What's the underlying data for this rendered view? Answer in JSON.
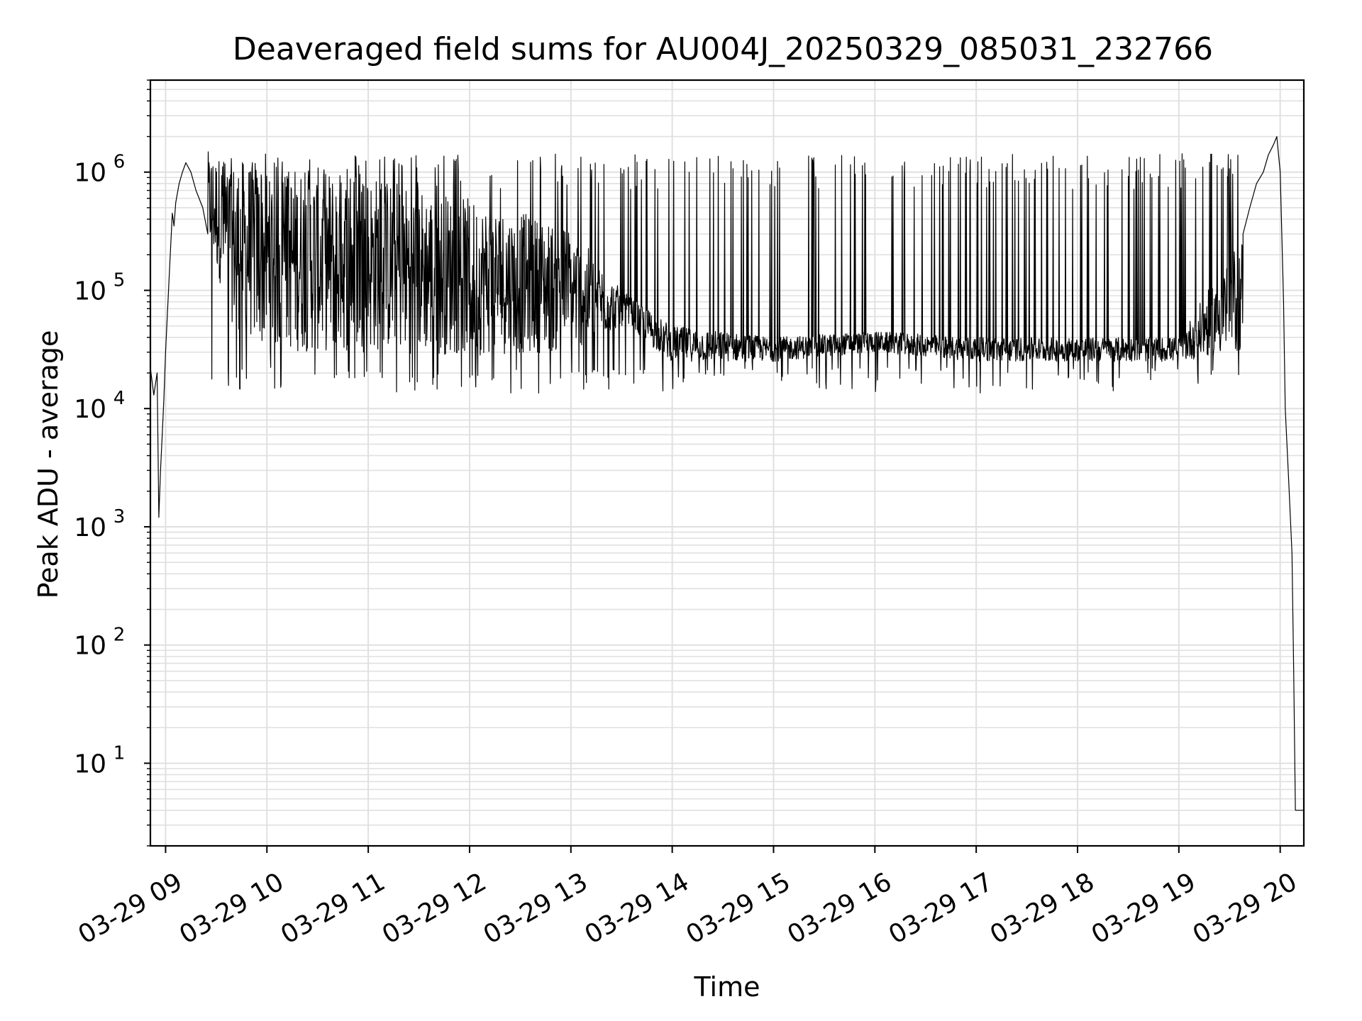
{
  "chart_data": {
    "type": "line",
    "title": "Deaveraged field sums for AU004J_20250329_085031_232766",
    "xlabel": "Time",
    "ylabel": "Peak ADU - average",
    "yscale": "log",
    "ylim": [
      2,
      6000000
    ],
    "xlim": [
      "2025-03-29T08:51:00",
      "2025-03-29T20:14:00"
    ],
    "grid": true,
    "line_color": "#000000",
    "x_ticks": [
      "03-29 09",
      "03-29 10",
      "03-29 11",
      "03-29 12",
      "03-29 13",
      "03-29 14",
      "03-29 15",
      "03-29 16",
      "03-29 17",
      "03-29 18",
      "03-29 19",
      "03-29 20"
    ],
    "y_ticks": [
      {
        "base": "10",
        "exp": "1"
      },
      {
        "base": "10",
        "exp": "2"
      },
      {
        "base": "10",
        "exp": "3"
      },
      {
        "base": "10",
        "exp": "4"
      },
      {
        "base": "10",
        "exp": "5"
      },
      {
        "base": "10",
        "exp": "6"
      }
    ],
    "series": [
      {
        "x": [
          "2025-03-29T08:51:00",
          "2025-03-29T08:53:00",
          "2025-03-29T08:55:00",
          "2025-03-29T08:56:00",
          "2025-03-29T08:57:00",
          "2025-03-29T08:58:00",
          "2025-03-29T08:59:00",
          "2025-03-29T09:00:00",
          "2025-03-29T09:02:00",
          "2025-03-29T09:04:00",
          "2025-03-29T09:05:00",
          "2025-03-29T09:06:00",
          "2025-03-29T09:08:00",
          "2025-03-29T09:10:00",
          "2025-03-29T09:12:00",
          "2025-03-29T09:15:00",
          "2025-03-29T09:18:00",
          "2025-03-29T09:22:00",
          "2025-03-29T09:25:00",
          "2025-03-29T19:38:00",
          "2025-03-29T19:42:00",
          "2025-03-29T19:46:00",
          "2025-03-29T19:50:00",
          "2025-03-29T19:53:00",
          "2025-03-29T19:56:00",
          "2025-03-29T19:58:00",
          "2025-03-29T20:00:00",
          "2025-03-29T20:02:00",
          "2025-03-29T20:03:00",
          "2025-03-29T20:05:00",
          "2025-03-29T20:07:00",
          "2025-03-29T20:08:00",
          "2025-03-29T20:09:00",
          "2025-03-29T20:10:00",
          "2025-03-29T20:14:00"
        ],
        "y": [
          22000,
          13000,
          20000,
          1200,
          3000,
          6000,
          12000,
          30000,
          120000,
          450000,
          350000,
          550000,
          800000,
          1000000,
          1200000,
          1000000,
          700000,
          500000,
          300000,
          300000,
          500000,
          800000,
          1000000,
          1400000,
          1700000,
          2000000,
          1000000,
          80000,
          10000,
          2500,
          600,
          60,
          4,
          4,
          4
        ]
      }
    ],
    "noisy_band": {
      "x_range": [
        "2025-03-29T09:25:00",
        "2025-03-29T19:38:00"
      ],
      "baseline": [
        {
          "x": "2025-03-29T09:25:00",
          "low": 250000,
          "high": 1500000
        },
        {
          "x": "2025-03-29T09:40:00",
          "low": 50000,
          "high": 1300000
        },
        {
          "x": "2025-03-29T10:00:00",
          "low": 30000,
          "high": 1200000
        },
        {
          "x": "2025-03-29T11:00:00",
          "low": 30000,
          "high": 1000000
        },
        {
          "x": "2025-03-29T12:00:00",
          "low": 28000,
          "high": 600000
        },
        {
          "x": "2025-03-29T13:00:00",
          "low": 30000,
          "high": 350000
        },
        {
          "x": "2025-03-29T13:30:00",
          "low": 50000,
          "high": 100000
        },
        {
          "x": "2025-03-29T14:00:00",
          "low": 25000,
          "high": 50000
        },
        {
          "x": "2025-03-29T15:00:00",
          "low": 25000,
          "high": 40000
        },
        {
          "x": "2025-03-29T16:00:00",
          "low": 30000,
          "high": 45000
        },
        {
          "x": "2025-03-29T17:00:00",
          "low": 25000,
          "high": 40000
        },
        {
          "x": "2025-03-29T18:00:00",
          "low": 25000,
          "high": 40000
        },
        {
          "x": "2025-03-29T19:00:00",
          "low": 25000,
          "high": 40000
        },
        {
          "x": "2025-03-29T19:38:00",
          "low": 30000,
          "high": 300000
        }
      ],
      "spike_peak": 1300000,
      "dip_floor": 15000
    }
  }
}
